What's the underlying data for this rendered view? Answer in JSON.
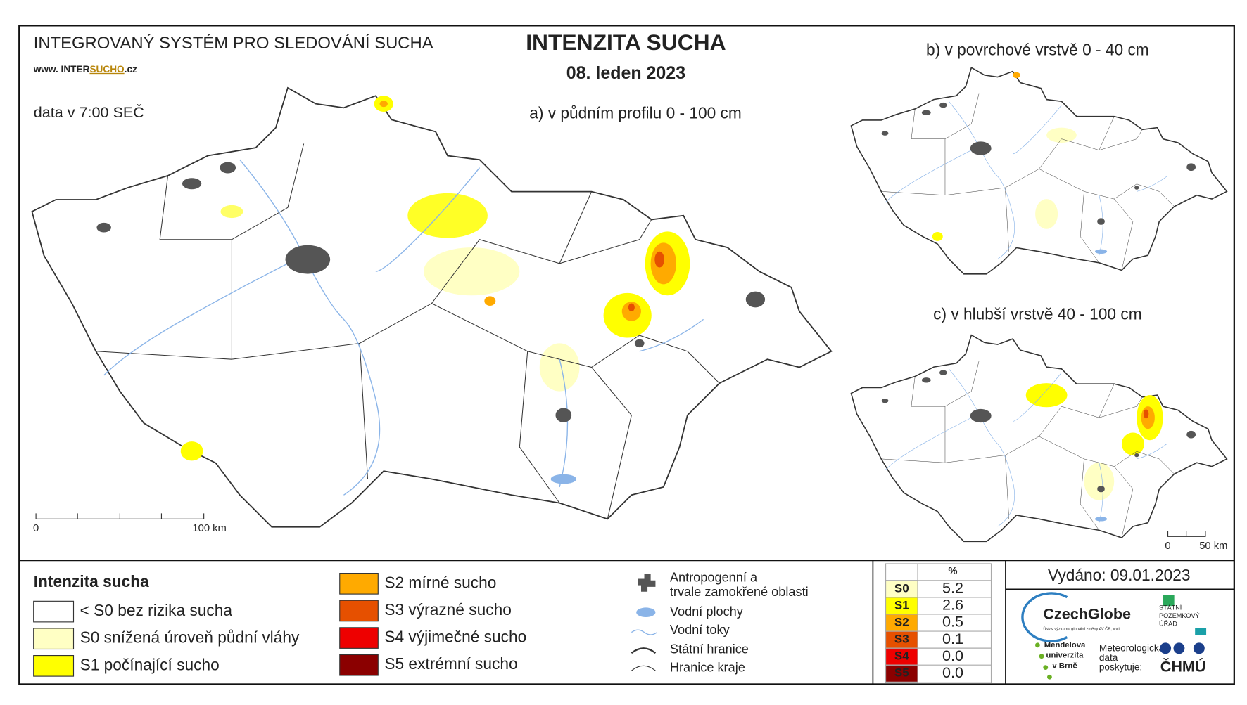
{
  "header": {
    "system": "INTEGROVANÝ SYSTÉM PRO SLEDOVÁNÍ SUCHA",
    "url_prefix": "www. INTER",
    "url_highlight": "SUCHO",
    "url_suffix": ".cz",
    "title": "INTENZITA SUCHA",
    "date": "08. leden 2023",
    "data_time": "data v 7:00 SEČ"
  },
  "maps": {
    "main": "a) v půdním profilu 0 - 100 cm",
    "surface": "b) v povrchové vrstvě 0 - 40 cm",
    "deep": "c) v hlubší vrstvě 40 - 100 cm"
  },
  "scale_main": [
    "0",
    "100 km"
  ],
  "scale_small": [
    "0",
    "50 km"
  ],
  "legend": {
    "title": "Intenzita sucha",
    "items": [
      {
        "label": "< S0 bez rizika sucha",
        "color": "#ffffff"
      },
      {
        "label": "S0 snížená úroveň půdní vláhy",
        "color": "#ffffc4"
      },
      {
        "label": "S1 počínající sucho",
        "color": "#ffff00"
      },
      {
        "label": "S2 mírné sucho",
        "color": "#ffaa00"
      },
      {
        "label": "S3 výrazné sucho",
        "color": "#e65000"
      },
      {
        "label": "S4 výjimečné sucho",
        "color": "#ee0000"
      },
      {
        "label": "S5 extrémní sucho",
        "color": "#8b0000"
      }
    ]
  },
  "symbols": {
    "anthropogenic": "Antropogenní a trvale zamokřené oblasti",
    "water_bodies": "Vodní plochy",
    "rivers": "Vodní toky",
    "state_border": "Státní hranice",
    "region_border": "Hranice kraje"
  },
  "stats": {
    "header": "%",
    "rows": [
      {
        "class": "S0",
        "value": "5.2",
        "color": "#ffffc4"
      },
      {
        "class": "S1",
        "value": "2.6",
        "color": "#ffff00"
      },
      {
        "class": "S2",
        "value": "0.5",
        "color": "#ffaa00"
      },
      {
        "class": "S3",
        "value": "0.1",
        "color": "#e65000"
      },
      {
        "class": "S4",
        "value": "0.0",
        "color": "#ee0000"
      },
      {
        "class": "S5",
        "value": "0.0",
        "color": "#8b0000"
      }
    ]
  },
  "issued": "Vydáno: 09.01.2023",
  "logos": {
    "czechglobe": "CzechGlobe",
    "czechglobe_sub": "Ústav výzkumu globální změny AV ČR, v.v.i.",
    "spu": [
      "STÁTNÍ",
      "POZEMKOVÝ",
      "ÚŘAD"
    ],
    "mendel": [
      "Mendelova",
      "univerzita",
      "v Brně"
    ],
    "meteo": [
      "Meteorologická",
      "data",
      "poskytuje:"
    ],
    "chmu": "ČHMÚ"
  }
}
